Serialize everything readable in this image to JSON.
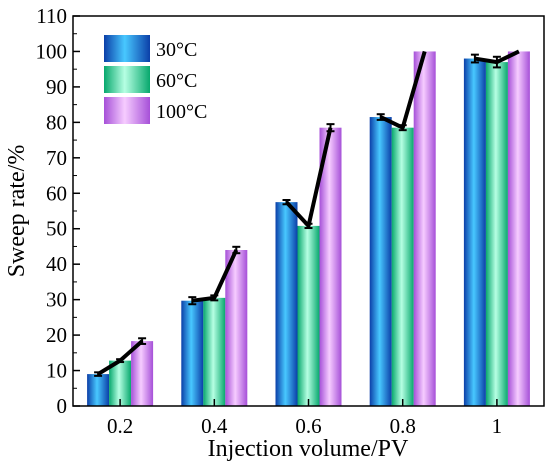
{
  "chart_data": {
    "type": "bar",
    "xlabel": "Injection volume/PV",
    "ylabel": "Sweep rate/%",
    "categories": [
      "0.2",
      "0.4",
      "0.6",
      "0.8",
      "1"
    ],
    "ylim": [
      0,
      110
    ],
    "yticks": [
      0,
      10,
      20,
      30,
      40,
      50,
      60,
      70,
      80,
      90,
      100,
      110
    ],
    "grid": false,
    "legend_position": "top-left",
    "series": [
      {
        "name": "30°C",
        "values": [
          9.0,
          29.7,
          57.5,
          81.5,
          98.0
        ],
        "errors": [
          0.5,
          1.0,
          0.6,
          0.8,
          1.1
        ],
        "color": "#1f6fd6"
      },
      {
        "name": "60°C",
        "values": [
          12.8,
          30.5,
          50.8,
          78.5,
          97.0
        ],
        "errors": [
          0.4,
          0.7,
          0.6,
          0.7,
          1.5
        ],
        "color": "#2ed89a"
      },
      {
        "name": "100°C",
        "values": [
          18.3,
          44.0,
          78.5,
          100.0,
          100.0
        ],
        "errors": [
          0.8,
          0.9,
          1.0,
          0.0,
          0.0
        ],
        "color": "#c77ce8"
      }
    ],
    "trend_line_color": "#000000"
  }
}
